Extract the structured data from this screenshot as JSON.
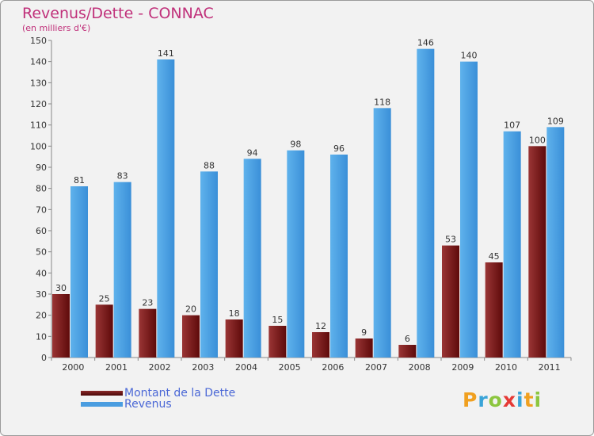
{
  "chart_data": {
    "type": "bar",
    "title": "Revenus/Dette - CONNAC",
    "subtitle": "(en milliers d'€)",
    "categories": [
      "2000",
      "2001",
      "2002",
      "2003",
      "2004",
      "2005",
      "2006",
      "2007",
      "2008",
      "2009",
      "2010",
      "2011"
    ],
    "series": [
      {
        "name": "Montant de la Dette",
        "values": [
          30,
          25,
          23,
          20,
          18,
          15,
          12,
          9,
          6,
          53,
          45,
          100
        ],
        "color": "#7a1a1a"
      },
      {
        "name": "Revenus",
        "values": [
          81,
          83,
          141,
          88,
          94,
          98,
          96,
          118,
          146,
          140,
          107,
          109
        ],
        "color": "#4a9de0"
      }
    ],
    "ylim": [
      0,
      150
    ],
    "yticks": [
      0,
      10,
      20,
      30,
      40,
      50,
      60,
      70,
      80,
      90,
      100,
      110,
      120,
      130,
      140,
      150
    ],
    "xlabel": "",
    "ylabel": "",
    "grid": false,
    "legend": "bottom-left"
  },
  "logo": {
    "letters": [
      "P",
      "r",
      "o",
      "x",
      "i",
      "t",
      "i"
    ],
    "colors": [
      "#f0a020",
      "#3aa4d8",
      "#8cc63f",
      "#e53935",
      "#3aa4d8",
      "#f0a020",
      "#8cc63f"
    ]
  }
}
